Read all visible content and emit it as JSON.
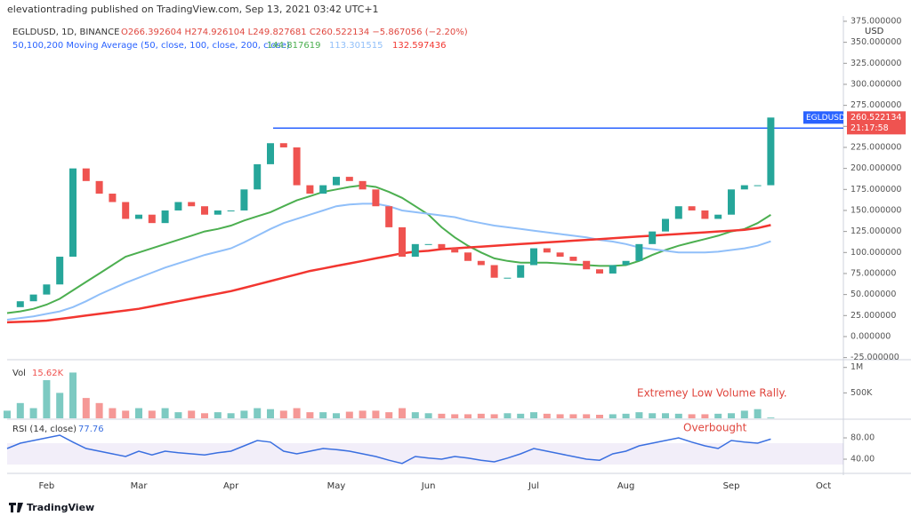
{
  "header": {
    "byline": "elevationtrading published on TradingView.com, Sep 13, 2021 03:42 UTC+1",
    "logo": "TradingView"
  },
  "chart_data": {
    "type": "candlestick",
    "symbol_line": "EGLDUSD, 1D, BINANCE",
    "ohlc_line": "O266.392604 H274.926104 L249.827681 C260.522134 −5.867056 (−2.20%)",
    "ma_legend": "50,100,200 Moving Average (50, close, 100, close, 200, close)",
    "currency": "USD",
    "countdown": "21:17:58",
    "categories": [
      null,
      null,
      null,
      "Feb",
      null,
      null,
      null,
      null,
      null,
      null,
      "Mar",
      null,
      null,
      null,
      null,
      null,
      null,
      "Apr",
      null,
      null,
      null,
      null,
      null,
      null,
      null,
      "May",
      null,
      null,
      null,
      null,
      null,
      null,
      "Jun",
      null,
      null,
      null,
      null,
      null,
      null,
      null,
      "Jul",
      null,
      null,
      null,
      null,
      null,
      null,
      "Aug",
      null,
      null,
      null,
      null,
      null,
      null,
      null,
      "Sep",
      null,
      null,
      null,
      null,
      null,
      null,
      "Oct"
    ],
    "ylim": [
      -27.5,
      381.3
    ],
    "yticks": [
      {
        "value": -25,
        "label": "-25.000000"
      },
      {
        "value": 0,
        "label": "0.000000"
      },
      {
        "value": 25,
        "label": "25.000000"
      },
      {
        "value": 50,
        "label": "50.000000"
      },
      {
        "value": 75,
        "label": "75.000000"
      },
      {
        "value": 100,
        "label": "100.000000"
      },
      {
        "value": 125,
        "label": "125.000000"
      },
      {
        "value": 150,
        "label": "150.000000"
      },
      {
        "value": 175,
        "label": "175.000000"
      },
      {
        "value": 200,
        "label": "200.000000"
      },
      {
        "value": 225,
        "label": "225.000000"
      },
      {
        "value": 250,
        "label": "250.000000"
      },
      {
        "value": 275,
        "label": "275.000000"
      },
      {
        "value": 300,
        "label": "300.000000"
      },
      {
        "value": 325,
        "label": "325.000000"
      },
      {
        "value": 350,
        "label": "350.000000"
      },
      {
        "value": 375,
        "label": "375.000000"
      }
    ],
    "price": {
      "name": "EGLDUSD",
      "up_color": "#26a69a",
      "down_color": "#ef5350",
      "values": [
        35,
        42,
        50,
        62,
        95,
        200,
        185,
        170,
        160,
        140,
        145,
        135,
        150,
        160,
        155,
        145,
        150,
        150,
        175,
        205,
        230,
        225,
        180,
        170,
        180,
        190,
        185,
        175,
        155,
        130,
        95,
        110,
        110,
        105,
        100,
        90,
        85,
        70,
        70,
        85,
        105,
        100,
        95,
        90,
        80,
        75,
        85,
        90,
        110,
        125,
        140,
        155,
        150,
        140,
        145,
        175,
        180,
        180,
        260.522134,
        null,
        null,
        null,
        null
      ]
    },
    "resistance_level": 248,
    "resistance_color": "#2962ff",
    "moving_averages": [
      {
        "color": "#4caf50",
        "values": [
          28,
          30,
          33,
          38,
          45,
          55,
          65,
          75,
          85,
          95,
          100,
          105,
          110,
          115,
          120,
          125,
          128,
          132,
          138,
          143,
          148,
          155,
          162,
          167,
          172,
          175,
          178,
          180,
          178,
          172,
          165,
          155,
          145,
          130,
          118,
          108,
          100,
          93,
          90,
          88,
          88,
          88,
          87,
          86,
          85,
          84,
          84,
          85,
          90,
          97,
          103,
          108,
          112,
          116,
          120,
          125,
          128,
          135,
          144.817619,
          null,
          null,
          null,
          null
        ]
      },
      {
        "color": "#90bff9",
        "values": [
          20,
          22,
          24,
          27,
          30,
          35,
          42,
          50,
          57,
          64,
          70,
          76,
          82,
          87,
          92,
          97,
          101,
          105,
          112,
          120,
          128,
          135,
          140,
          145,
          150,
          155,
          157,
          158,
          158,
          155,
          150,
          148,
          146,
          144,
          142,
          138,
          135,
          132,
          130,
          128,
          126,
          124,
          122,
          120,
          118,
          115,
          113,
          110,
          106,
          104,
          102,
          100,
          100,
          100,
          101,
          103,
          105,
          108,
          113.301515,
          null,
          null,
          null,
          null
        ]
      },
      {
        "color": "#f23630",
        "values": [
          17,
          17.5,
          18,
          19,
          21,
          23,
          25,
          27,
          29,
          31,
          33,
          36,
          39,
          42,
          45,
          48,
          51,
          54,
          58,
          62,
          66,
          70,
          74,
          78,
          81,
          84,
          87,
          90,
          93,
          96,
          99,
          101,
          102,
          104,
          105,
          106,
          107,
          108,
          109,
          110,
          111,
          112,
          113,
          114,
          115,
          116,
          117,
          118,
          119,
          120,
          121,
          122,
          123,
          124,
          125,
          126,
          127,
          129,
          132.597436,
          null,
          null,
          null,
          null
        ]
      }
    ],
    "volume": {
      "name": "Vol",
      "last_label": "15.62K",
      "ylim": [
        0,
        1100000
      ],
      "yticks": [
        {
          "value": 1000000,
          "label": "1M"
        },
        {
          "value": 500000,
          "label": "500K"
        }
      ],
      "values": [
        150000,
        300000,
        200000,
        750000,
        500000,
        900000,
        400000,
        300000,
        200000,
        150000,
        200000,
        150000,
        200000,
        120000,
        150000,
        100000,
        120000,
        100000,
        150000,
        200000,
        180000,
        150000,
        200000,
        120000,
        120000,
        100000,
        130000,
        150000,
        150000,
        120000,
        200000,
        120000,
        100000,
        90000,
        80000,
        80000,
        90000,
        80000,
        100000,
        90000,
        120000,
        90000,
        80000,
        80000,
        80000,
        70000,
        80000,
        90000,
        120000,
        100000,
        100000,
        90000,
        80000,
        80000,
        90000,
        100000,
        150000,
        180000,
        15620,
        null,
        null,
        null,
        null
      ]
    },
    "rsi": {
      "name": "RSI (14, close)",
      "color": "#3a6fe0",
      "ylim": [
        16.7,
        111.7
      ],
      "band": [
        30,
        70
      ],
      "yticks": [
        {
          "value": 80,
          "label": "80.00"
        },
        {
          "value": 40,
          "label": "40.00"
        }
      ],
      "values": [
        60,
        70,
        75,
        80,
        85,
        72,
        60,
        55,
        50,
        45,
        55,
        48,
        55,
        52,
        50,
        48,
        52,
        55,
        65,
        75,
        72,
        55,
        50,
        55,
        60,
        58,
        55,
        50,
        45,
        38,
        32,
        45,
        42,
        40,
        45,
        42,
        38,
        35,
        42,
        50,
        60,
        55,
        50,
        45,
        40,
        38,
        50,
        55,
        65,
        70,
        75,
        80,
        72,
        65,
        60,
        75,
        72,
        70,
        77.76,
        null,
        null,
        null,
        null
      ]
    },
    "annotations": [
      {
        "text": "Extremey Low Volume Rally."
      },
      {
        "text": "Overbought"
      }
    ]
  }
}
